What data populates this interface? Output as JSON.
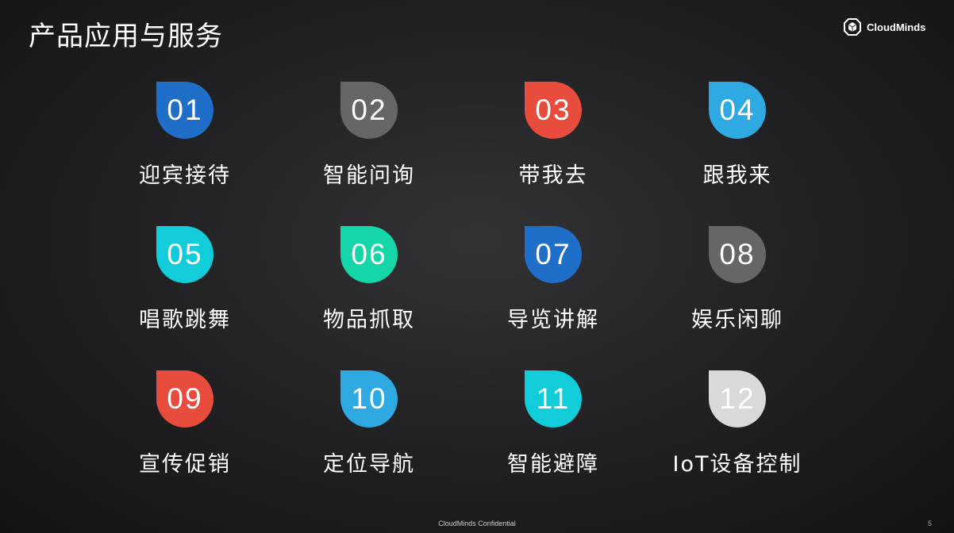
{
  "header": {
    "title": "产品应用与服务",
    "logo_text": "CloudMinds"
  },
  "items": [
    {
      "number": "01",
      "label": "迎宾接待",
      "color": "#1f6fc8"
    },
    {
      "number": "02",
      "label": "智能问询",
      "color": "#666666"
    },
    {
      "number": "03",
      "label": "带我去",
      "color": "#e74c3c"
    },
    {
      "number": "04",
      "label": "跟我来",
      "color": "#2ea9e1"
    },
    {
      "number": "05",
      "label": "唱歌跳舞",
      "color": "#12ccd9"
    },
    {
      "number": "06",
      "label": "物品抓取",
      "color": "#14d6a6"
    },
    {
      "number": "07",
      "label": "导览讲解",
      "color": "#1f6fc8"
    },
    {
      "number": "08",
      "label": "娱乐闲聊",
      "color": "#666666"
    },
    {
      "number": "09",
      "label": "宣传促销",
      "color": "#e74c3c"
    },
    {
      "number": "10",
      "label": "定位导航",
      "color": "#2ea9e1"
    },
    {
      "number": "11",
      "label": "智能避障",
      "color": "#12ccd9"
    },
    {
      "number": "12",
      "label": "IoT设备控制",
      "color": "#d9d9d9"
    }
  ],
  "footer": {
    "text": "CloudMinds Confidential",
    "page_number": "5"
  }
}
